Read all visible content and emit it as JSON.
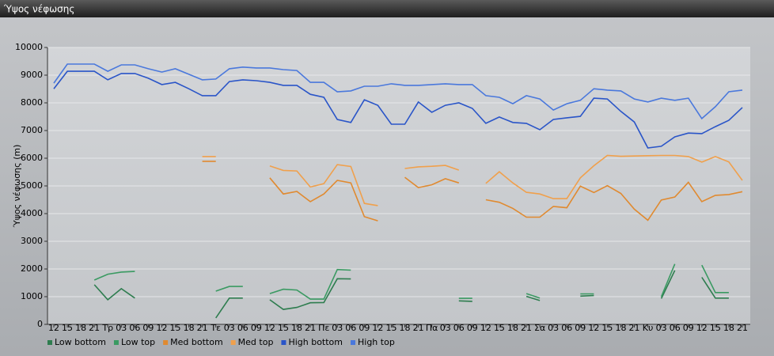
{
  "window_title": "Ύψος νέφωσης",
  "chart_data": {
    "type": "line",
    "y_label": "Ύψος νέφωσης (m)",
    "categories": [
      "12",
      "15",
      "18",
      "21",
      "Τρ",
      "03",
      "06",
      "09",
      "12",
      "15",
      "18",
      "21",
      "Τε",
      "03",
      "06",
      "09",
      "12",
      "15",
      "18",
      "21",
      "Πε",
      "03",
      "06",
      "09",
      "12",
      "15",
      "18",
      "21",
      "Πα",
      "03",
      "06",
      "09",
      "12",
      "15",
      "18",
      "21",
      "Σα",
      "03",
      "06",
      "09",
      "12",
      "15",
      "18",
      "21",
      "Κυ",
      "03",
      "06",
      "09",
      "12",
      "15",
      "18",
      "21"
    ],
    "ylim": [
      0,
      10000
    ],
    "yticks": [
      0,
      1000,
      2000,
      3000,
      4000,
      5000,
      6000,
      7000,
      8000,
      9000,
      10000
    ],
    "grid": true,
    "legend_position": "bottom-left",
    "series": [
      {
        "name": "Low bottom",
        "color": "#2e7d4f",
        "values": [
          null,
          null,
          null,
          1430,
          890,
          1290,
          950,
          null,
          null,
          null,
          null,
          null,
          230,
          950,
          950,
          null,
          890,
          540,
          610,
          780,
          790,
          1650,
          1640,
          null,
          null,
          null,
          null,
          null,
          null,
          null,
          850,
          830,
          null,
          null,
          null,
          1010,
          860,
          null,
          null,
          1020,
          1040,
          null,
          null,
          null,
          null,
          930,
          1950,
          null,
          1700,
          950,
          950,
          null
        ]
      },
      {
        "name": "Low top",
        "color": "#3a9a62",
        "values": [
          null,
          null,
          null,
          1600,
          1810,
          1890,
          1910,
          null,
          null,
          null,
          null,
          null,
          1200,
          1370,
          1370,
          null,
          1110,
          1270,
          1240,
          910,
          910,
          1980,
          1960,
          null,
          null,
          null,
          null,
          null,
          null,
          null,
          940,
          940,
          null,
          null,
          null,
          1110,
          950,
          null,
          null,
          1100,
          1100,
          null,
          null,
          null,
          null,
          1000,
          2180,
          null,
          2140,
          1150,
          1150,
          null
        ]
      },
      {
        "name": "Med bottom",
        "color": "#e08a30",
        "values": [
          null,
          null,
          null,
          null,
          null,
          null,
          null,
          null,
          null,
          null,
          null,
          5890,
          5890,
          null,
          null,
          null,
          5290,
          4710,
          4800,
          4430,
          4710,
          5200,
          5110,
          3890,
          3740,
          null,
          5310,
          4940,
          5040,
          5260,
          5110,
          null,
          4500,
          4410,
          4190,
          3870,
          3870,
          4260,
          4210,
          4990,
          4760,
          5010,
          4730,
          4160,
          3760,
          4490,
          4600,
          5130,
          4430,
          4660,
          4690,
          4790
        ]
      },
      {
        "name": "Med top",
        "color": "#f0a04c",
        "values": [
          null,
          null,
          null,
          null,
          null,
          null,
          null,
          null,
          null,
          null,
          null,
          6060,
          6060,
          null,
          null,
          null,
          5720,
          5560,
          5540,
          4960,
          5080,
          5770,
          5700,
          4370,
          4290,
          null,
          5630,
          5690,
          5710,
          5740,
          5570,
          null,
          5090,
          5510,
          5110,
          4770,
          4710,
          4540,
          4540,
          5290,
          5730,
          6100,
          6070,
          6080,
          6090,
          6100,
          6100,
          6060,
          5860,
          6060,
          5870,
          5200
        ]
      },
      {
        "name": "High bottom",
        "color": "#2a55c8",
        "values": [
          8510,
          9140,
          9140,
          9140,
          8830,
          9060,
          9060,
          8890,
          8660,
          8740,
          8510,
          8260,
          8260,
          8770,
          8830,
          8800,
          8740,
          8630,
          8630,
          8310,
          8200,
          7400,
          7290,
          8110,
          7910,
          7230,
          7230,
          8030,
          7660,
          7910,
          8000,
          7800,
          7260,
          7490,
          7290,
          7260,
          7030,
          7400,
          7460,
          7510,
          8170,
          8140,
          7690,
          7310,
          6370,
          6430,
          6770,
          6910,
          6890,
          7140,
          7370,
          7830
        ]
      },
      {
        "name": "High top",
        "color": "#4a78dc",
        "values": [
          8710,
          9400,
          9400,
          9400,
          9140,
          9370,
          9370,
          9230,
          9110,
          9230,
          9030,
          8830,
          8860,
          9230,
          9290,
          9260,
          9260,
          9200,
          9170,
          8740,
          8740,
          8400,
          8430,
          8600,
          8600,
          8690,
          8630,
          8630,
          8660,
          8690,
          8660,
          8660,
          8260,
          8200,
          7970,
          8260,
          8140,
          7740,
          7970,
          8090,
          8510,
          8460,
          8430,
          8140,
          8030,
          8170,
          8090,
          8170,
          7430,
          7860,
          8400,
          8460
        ]
      }
    ]
  }
}
